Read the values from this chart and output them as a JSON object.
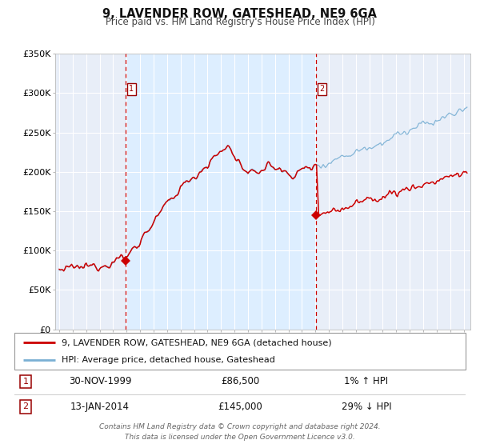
{
  "title": "9, LAVENDER ROW, GATESHEAD, NE9 6GA",
  "subtitle": "Price paid vs. HM Land Registry's House Price Index (HPI)",
  "legend_line1": "9, LAVENDER ROW, GATESHEAD, NE9 6GA (detached house)",
  "legend_line2": "HPI: Average price, detached house, Gateshead",
  "table_row1": [
    "1",
    "30-NOV-1999",
    "£86,500",
    "1% ↑ HPI"
  ],
  "table_row2": [
    "2",
    "13-JAN-2014",
    "£145,000",
    "29% ↓ HPI"
  ],
  "footer1": "Contains HM Land Registry data © Crown copyright and database right 2024.",
  "footer2": "This data is licensed under the Open Government Licence v3.0.",
  "hpi_color": "#7ab0d4",
  "price_color": "#cc0000",
  "bg_shaded": "#ddeeff",
  "plot_bg": "#e8eef8",
  "marker1_date": 1999.92,
  "marker1_value": 86500,
  "marker2_date": 2014.04,
  "marker2_value": 145000,
  "vline1_date": 1999.92,
  "vline2_date": 2014.04,
  "xmin": 1994.7,
  "xmax": 2025.5,
  "ymin": 0,
  "ymax": 350000,
  "yticks": [
    0,
    50000,
    100000,
    150000,
    200000,
    250000,
    300000,
    350000
  ],
  "ytick_labels": [
    "£0",
    "£50K",
    "£100K",
    "£150K",
    "£200K",
    "£250K",
    "£300K",
    "£350K"
  ],
  "xticks": [
    1995,
    1996,
    1997,
    1998,
    1999,
    2000,
    2001,
    2002,
    2003,
    2004,
    2005,
    2006,
    2007,
    2008,
    2009,
    2010,
    2011,
    2012,
    2013,
    2014,
    2015,
    2016,
    2017,
    2018,
    2019,
    2020,
    2021,
    2022,
    2023,
    2024,
    2025
  ]
}
